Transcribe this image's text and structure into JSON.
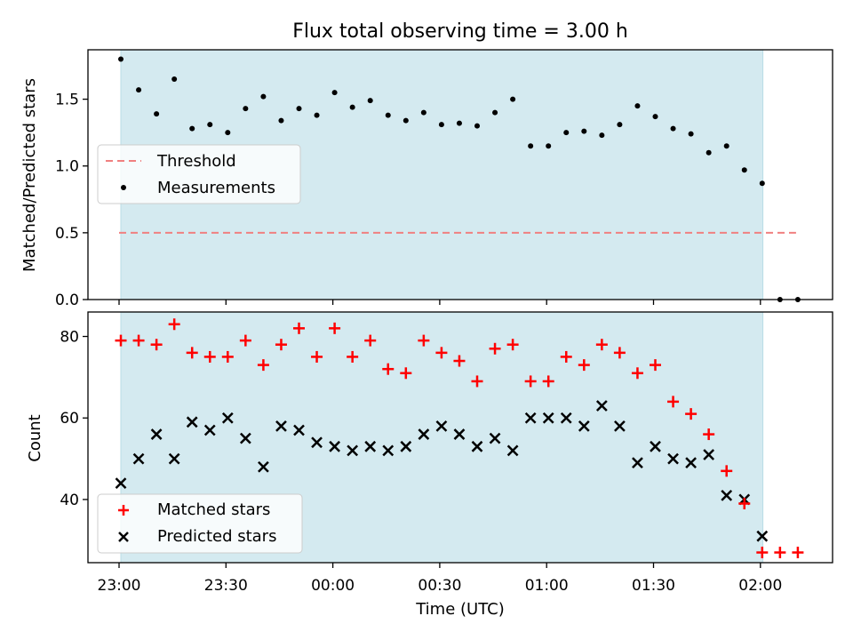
{
  "figure": {
    "title": "Flux total observing time = 3.00 h",
    "xlabel": "Time (UTC)",
    "x_ticks": [
      "23:00",
      "23:30",
      "00:00",
      "00:30",
      "01:00",
      "01:30",
      "02:00"
    ],
    "shade_color": "#d4eaf0"
  },
  "chart_data": [
    {
      "type": "scatter",
      "panel": "top",
      "ylabel": "Matched/Predicted stars",
      "ylim": [
        0,
        1.87
      ],
      "y_ticks": [
        "0.0",
        "0.5",
        "1.0",
        "1.5"
      ],
      "x_unit": "minutes after 23:00 UTC",
      "observing_window": [
        0.5,
        180.7
      ],
      "threshold": {
        "name": "Threshold",
        "value": 0.5,
        "x_range": [
          0,
          190
        ],
        "color": "#f08080"
      },
      "series": [
        {
          "name": "Measurements",
          "color": "#000000",
          "x": [
            0.5,
            5.5,
            10.5,
            15.5,
            20.5,
            25.5,
            30.5,
            35.5,
            40.5,
            45.5,
            50.5,
            55.5,
            60.5,
            65.5,
            70.5,
            75.5,
            80.5,
            85.5,
            90.5,
            95.5,
            100.5,
            105.5,
            110.5,
            115.5,
            120.5,
            125.5,
            130.5,
            135.5,
            140.5,
            145.5,
            150.5,
            155.5,
            160.5,
            165.5,
            170.5,
            175.5,
            180.5,
            185.5,
            190.5
          ],
          "y": [
            1.8,
            1.57,
            1.39,
            1.65,
            1.28,
            1.31,
            1.25,
            1.43,
            1.52,
            1.34,
            1.43,
            1.38,
            1.55,
            1.44,
            1.49,
            1.38,
            1.34,
            1.4,
            1.31,
            1.32,
            1.3,
            1.4,
            1.5,
            1.15,
            1.15,
            1.25,
            1.26,
            1.23,
            1.31,
            1.45,
            1.37,
            1.28,
            1.24,
            1.1,
            1.15,
            0.97,
            0.87,
            0.0,
            0.0
          ]
        }
      ],
      "legend": {
        "placement": "center-left",
        "entries": [
          "Threshold",
          "Measurements"
        ]
      }
    },
    {
      "type": "scatter",
      "panel": "bottom",
      "ylabel": "Count",
      "ylim": [
        24.5,
        86
      ],
      "y_ticks": [
        "40",
        "60",
        "80"
      ],
      "x_unit": "minutes after 23:00 UTC",
      "observing_window": [
        0.5,
        180.7
      ],
      "series": [
        {
          "name": "Matched stars",
          "marker": "+",
          "color": "#ff0000",
          "x": [
            0.5,
            5.5,
            10.5,
            15.5,
            20.5,
            25.5,
            30.5,
            35.5,
            40.5,
            45.5,
            50.5,
            55.5,
            60.5,
            65.5,
            70.5,
            75.5,
            80.5,
            85.5,
            90.5,
            95.5,
            100.5,
            105.5,
            110.5,
            115.5,
            120.5,
            125.5,
            130.5,
            135.5,
            140.5,
            145.5,
            150.5,
            155.5,
            160.5,
            165.5,
            170.5,
            175.5,
            180.5,
            185.5,
            190.5
          ],
          "y": [
            79,
            79,
            78,
            83,
            76,
            75,
            75,
            79,
            73,
            78,
            82,
            75,
            82,
            75,
            79,
            72,
            71,
            79,
            76,
            74,
            69,
            77,
            78,
            69,
            69,
            75,
            73,
            78,
            76,
            71,
            73,
            64,
            61,
            56,
            47,
            39,
            27,
            27,
            27
          ]
        },
        {
          "name": "Predicted stars",
          "marker": "x",
          "color": "#000000",
          "x": [
            0.5,
            5.5,
            10.5,
            15.5,
            20.5,
            25.5,
            30.5,
            35.5,
            40.5,
            45.5,
            50.5,
            55.5,
            60.5,
            65.5,
            70.5,
            75.5,
            80.5,
            85.5,
            90.5,
            95.5,
            100.5,
            105.5,
            110.5,
            115.5,
            120.5,
            125.5,
            130.5,
            135.5,
            140.5,
            145.5,
            150.5,
            155.5,
            160.5,
            165.5,
            170.5,
            175.5,
            180.5
          ],
          "y": [
            44,
            50,
            56,
            50,
            59,
            57,
            60,
            55,
            48,
            58,
            57,
            54,
            53,
            52,
            53,
            52,
            53,
            56,
            58,
            56,
            53,
            55,
            52,
            60,
            60,
            60,
            58,
            63,
            58,
            49,
            53,
            50,
            49,
            51,
            41,
            40,
            31
          ]
        }
      ],
      "legend": {
        "placement": "lower-left",
        "entries": [
          "Matched stars",
          "Predicted stars"
        ]
      }
    }
  ]
}
